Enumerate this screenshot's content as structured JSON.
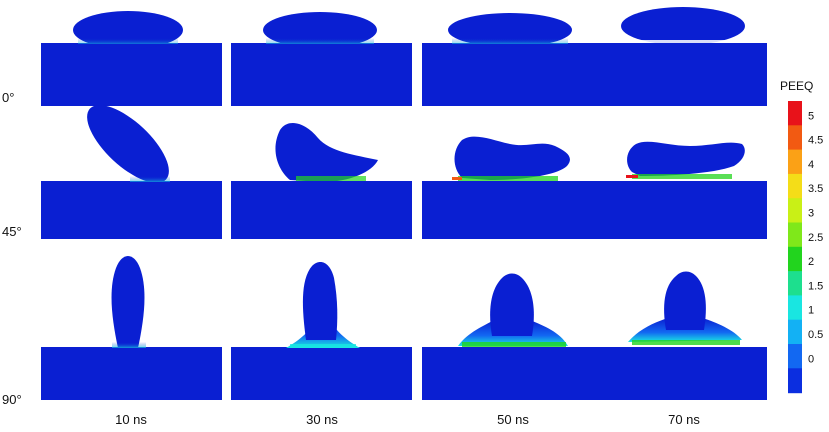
{
  "figure": {
    "row_labels": [
      "0°",
      "45°",
      "90°"
    ],
    "column_labels": [
      "10 ns",
      "30 ns",
      "50 ns",
      "70 ns"
    ],
    "legend": {
      "title": "PEEQ",
      "levels": [
        "5",
        "4.5",
        "4",
        "3.5",
        "3",
        "2.5",
        "2",
        "1.5",
        "1",
        "0.5",
        "0"
      ],
      "colors": [
        "#e8121a",
        "#f25a12",
        "#fba116",
        "#f4dd18",
        "#c9f016",
        "#7fe81a",
        "#22d41e",
        "#1ddf8e",
        "#19e6e1",
        "#13b1f4",
        "#1268f2",
        "#0b2ee0"
      ]
    },
    "colors": {
      "substrate": "#0a1fd2",
      "particle": "#0a1fd2",
      "background": "#ffffff"
    }
  }
}
